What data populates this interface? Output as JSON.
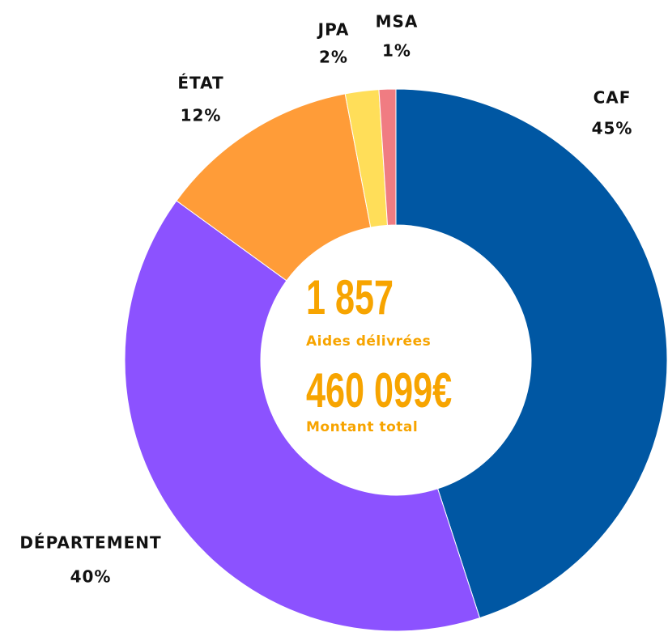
{
  "chart_data": {
    "type": "donut",
    "categories": [
      "CAF",
      "DÉPARTEMENT",
      "ÉTAT",
      "JPA",
      "MSA"
    ],
    "values": [
      45,
      40,
      12,
      2,
      1
    ],
    "value_labels": [
      "45%",
      "40%",
      "12%",
      "2%",
      "1%"
    ],
    "colors": [
      "#0057a3",
      "#8c52ff",
      "#ff9c38",
      "#ffde59",
      "#f07c82"
    ],
    "center_labels": [
      {
        "value": "1 857",
        "caption": "Aides délivrées"
      },
      {
        "value": "460 099€",
        "caption": "Montant total"
      }
    ]
  }
}
